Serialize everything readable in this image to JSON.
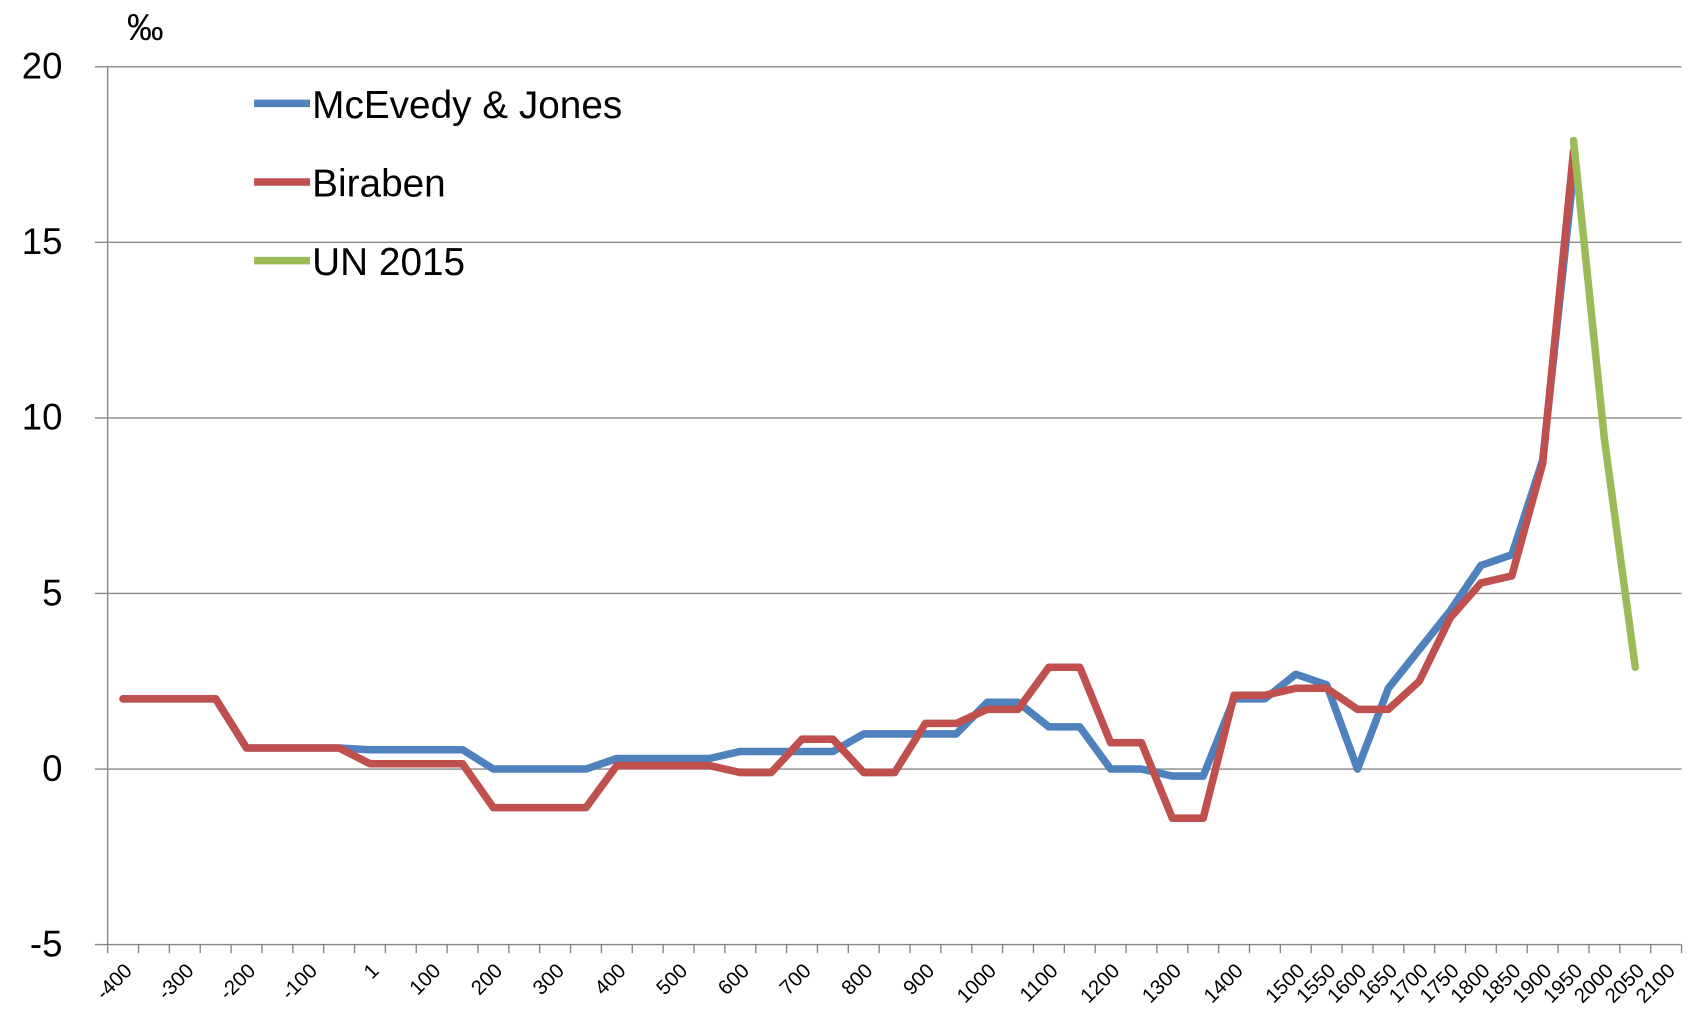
{
  "chart_data": {
    "type": "line",
    "y_label": "‰",
    "categories": [
      "-400",
      null,
      "-300",
      null,
      "-200",
      null,
      "-100",
      null,
      "1",
      null,
      "100",
      null,
      "200",
      null,
      "300",
      null,
      "400",
      null,
      "500",
      null,
      "600",
      null,
      "700",
      null,
      "800",
      null,
      "900",
      null,
      "1000",
      null,
      "1100",
      null,
      "1200",
      null,
      "1300",
      null,
      "1400",
      null,
      "1500",
      "1550",
      "1600",
      "1650",
      "1700",
      "1750",
      "1800",
      "1850",
      "1900",
      "1950",
      "2000",
      "2050",
      "2100"
    ],
    "series": [
      {
        "name": "McEvedy & Jones",
        "color": "#4f81bd",
        "values": [
          2,
          2,
          2,
          2,
          0.6,
          0.6,
          0.6,
          0.6,
          0.55,
          0.55,
          0.55,
          0.55,
          0,
          0,
          0,
          0,
          0.3,
          0.3,
          0.3,
          0.3,
          0.5,
          0.5,
          0.5,
          0.5,
          1,
          1,
          1,
          1,
          1.9,
          1.9,
          1.2,
          1.2,
          0,
          0,
          -0.2,
          -0.2,
          2,
          2,
          2.7,
          2.4,
          0,
          2.3,
          3.4,
          4.5,
          5.8,
          6.1,
          8.8,
          17,
          null,
          null,
          null
        ]
      },
      {
        "name": "Biraben",
        "color": "#c0504d",
        "values": [
          2,
          2,
          2,
          2,
          0.6,
          0.6,
          0.6,
          0.6,
          0.15,
          0.15,
          0.15,
          0.15,
          -1.1,
          -1.1,
          -1.1,
          -1.1,
          0.1,
          0.1,
          0.1,
          0.1,
          -0.1,
          -0.1,
          0.85,
          0.85,
          -0.1,
          -0.1,
          1.3,
          1.3,
          1.7,
          1.7,
          2.9,
          2.9,
          0.75,
          0.75,
          -1.4,
          -1.4,
          2.1,
          2.1,
          2.3,
          2.3,
          1.7,
          1.7,
          2.5,
          4.3,
          5.3,
          5.5,
          8.7,
          17.6,
          null,
          null,
          null
        ]
      },
      {
        "name": "UN 2015",
        "color": "#9bbb59",
        "values": [
          null,
          null,
          null,
          null,
          null,
          null,
          null,
          null,
          null,
          null,
          null,
          null,
          null,
          null,
          null,
          null,
          null,
          null,
          null,
          null,
          null,
          null,
          null,
          null,
          null,
          null,
          null,
          null,
          null,
          null,
          null,
          null,
          null,
          null,
          null,
          null,
          null,
          null,
          null,
          null,
          null,
          null,
          null,
          null,
          null,
          null,
          null,
          17.9,
          9.4,
          2.9,
          null
        ]
      }
    ],
    "ylim": [
      -5,
      20
    ],
    "yticks": [
      -5,
      0,
      5,
      10,
      15,
      20
    ],
    "grid": true
  }
}
